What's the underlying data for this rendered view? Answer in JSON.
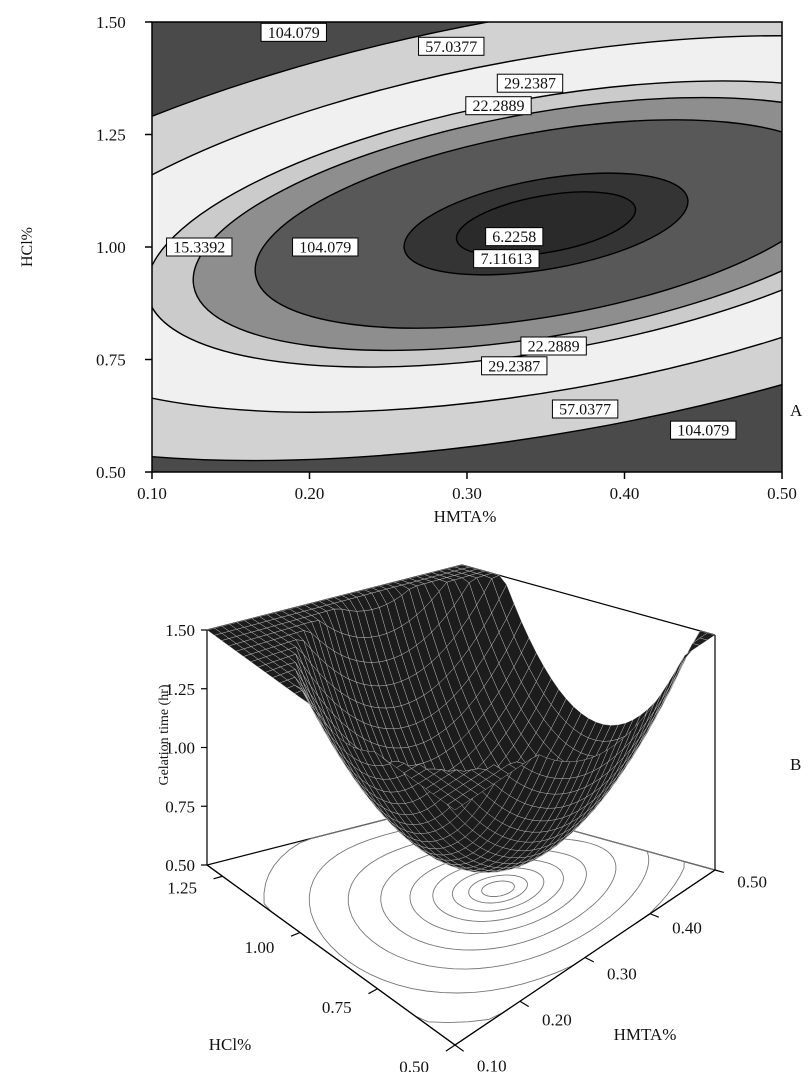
{
  "chart_data": [
    {
      "type": "contour",
      "panel_label": "A",
      "xlabel": "HMTA%",
      "ylabel": "HCl%",
      "xlim": [
        0.1,
        0.5
      ],
      "ylim": [
        0.5,
        1.5
      ],
      "xticks": [
        {
          "value": 0.1,
          "label": "0.10"
        },
        {
          "value": 0.2,
          "label": "0.20"
        },
        {
          "value": 0.3,
          "label": "0.30"
        },
        {
          "value": 0.4,
          "label": "0.40"
        },
        {
          "value": 0.5,
          "label": "0.50"
        }
      ],
      "yticks": [
        {
          "value": 0.5,
          "label": "0.50"
        },
        0.75,
        {
          "value": 1.0,
          "label": "1.00"
        },
        1.25,
        {
          "value": 1.5,
          "label": "1.50"
        }
      ],
      "levels": [
        6.2258,
        7.11613,
        15.3392,
        22.2889,
        29.2387,
        57.0377,
        104.079
      ],
      "contour_labels": [
        {
          "level": 104.079,
          "x": 0.19,
          "y": 1.477
        },
        {
          "level": 57.0377,
          "x": 0.29,
          "y": 1.446
        },
        {
          "level": 29.2387,
          "x": 0.34,
          "y": 1.364
        },
        {
          "level": 22.2889,
          "x": 0.32,
          "y": 1.314
        },
        {
          "level": 15.3392,
          "x": 0.13,
          "y": 1.0
        },
        {
          "level": 104.079,
          "x": 0.21,
          "y": 1.0
        },
        {
          "level": 6.2258,
          "x": 0.33,
          "y": 1.023
        },
        {
          "level": 7.11613,
          "x": 0.325,
          "y": 0.974
        },
        {
          "level": 22.2889,
          "x": 0.355,
          "y": 0.78
        },
        {
          "level": 29.2387,
          "x": 0.33,
          "y": 0.736
        },
        {
          "level": 57.0377,
          "x": 0.375,
          "y": 0.64
        },
        {
          "level": 104.079,
          "x": 0.45,
          "y": 0.593
        }
      ]
    },
    {
      "type": "surface3d",
      "panel_label": "B",
      "xlabel": "HMTA%",
      "ylabel": "HCl%",
      "zlabel": "Gelation time (hr)",
      "xlim": [
        0.1,
        0.5
      ],
      "ylim": [
        0.5,
        1.3
      ],
      "zlim": [
        0.5,
        1.5
      ],
      "xticks": [
        {
          "value": 0.1,
          "label": "0.10"
        },
        {
          "value": 0.2,
          "label": "0.20"
        },
        {
          "value": 0.3,
          "label": "0.30"
        },
        {
          "value": 0.4,
          "label": "0.40"
        },
        {
          "value": 0.5,
          "label": "0.50"
        }
      ],
      "yticks": [
        {
          "value": 0.5,
          "label": "0.50"
        },
        0.75,
        {
          "value": 1.0,
          "label": "1.00"
        },
        1.25
      ],
      "zticks": [
        {
          "value": 0.5,
          "label": "0.50"
        },
        0.75,
        {
          "value": 1.0,
          "label": "1.00"
        },
        1.25,
        {
          "value": 1.5,
          "label": "1.50"
        }
      ]
    }
  ]
}
